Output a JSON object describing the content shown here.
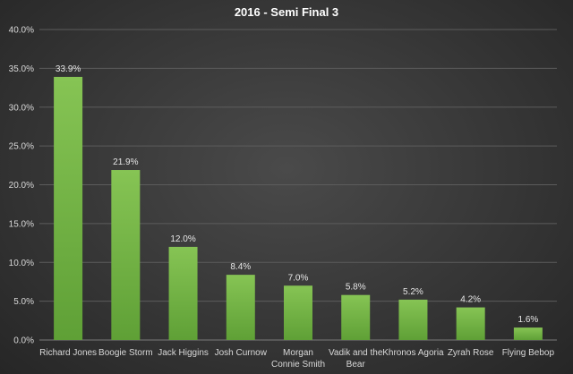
{
  "chart_data": {
    "type": "bar",
    "title": "2016 - Semi Final 3",
    "xlabel": "",
    "ylabel": "",
    "categories": [
      "Richard Jones",
      "Boogie Storm",
      "Jack Higgins",
      "Josh Curnow",
      "Morgan Connie Smith",
      "Vadik and the Bear",
      "Khronos Agoria",
      "Zyrah Rose",
      "Flying Bebop"
    ],
    "category_lines": [
      [
        "Richard Jones"
      ],
      [
        "Boogie Storm"
      ],
      [
        "Jack Higgins"
      ],
      [
        "Josh Curnow"
      ],
      [
        "Morgan",
        "Connie Smith"
      ],
      [
        "Vadik and the",
        "Bear"
      ],
      [
        "Khronos Agoria"
      ],
      [
        "Zyrah Rose"
      ],
      [
        "Flying Bebop"
      ]
    ],
    "values": [
      33.9,
      21.9,
      12.0,
      8.4,
      7.0,
      5.8,
      5.2,
      4.2,
      1.6
    ],
    "data_labels": [
      "33.9%",
      "21.9%",
      "12.0%",
      "8.4%",
      "7.0%",
      "5.8%",
      "5.2%",
      "4.2%",
      "1.6%"
    ],
    "ylim": [
      0,
      40
    ],
    "yticks": [
      0,
      5,
      10,
      15,
      20,
      25,
      30,
      35,
      40
    ],
    "ytick_labels": [
      "0.0%",
      "5.0%",
      "10.0%",
      "15.0%",
      "20.0%",
      "25.0%",
      "30.0%",
      "35.0%",
      "40.0%"
    ],
    "grid": true,
    "legend": "none",
    "colors": {
      "bar_top": "#86c454",
      "bar_bottom": "#5fa036"
    }
  }
}
